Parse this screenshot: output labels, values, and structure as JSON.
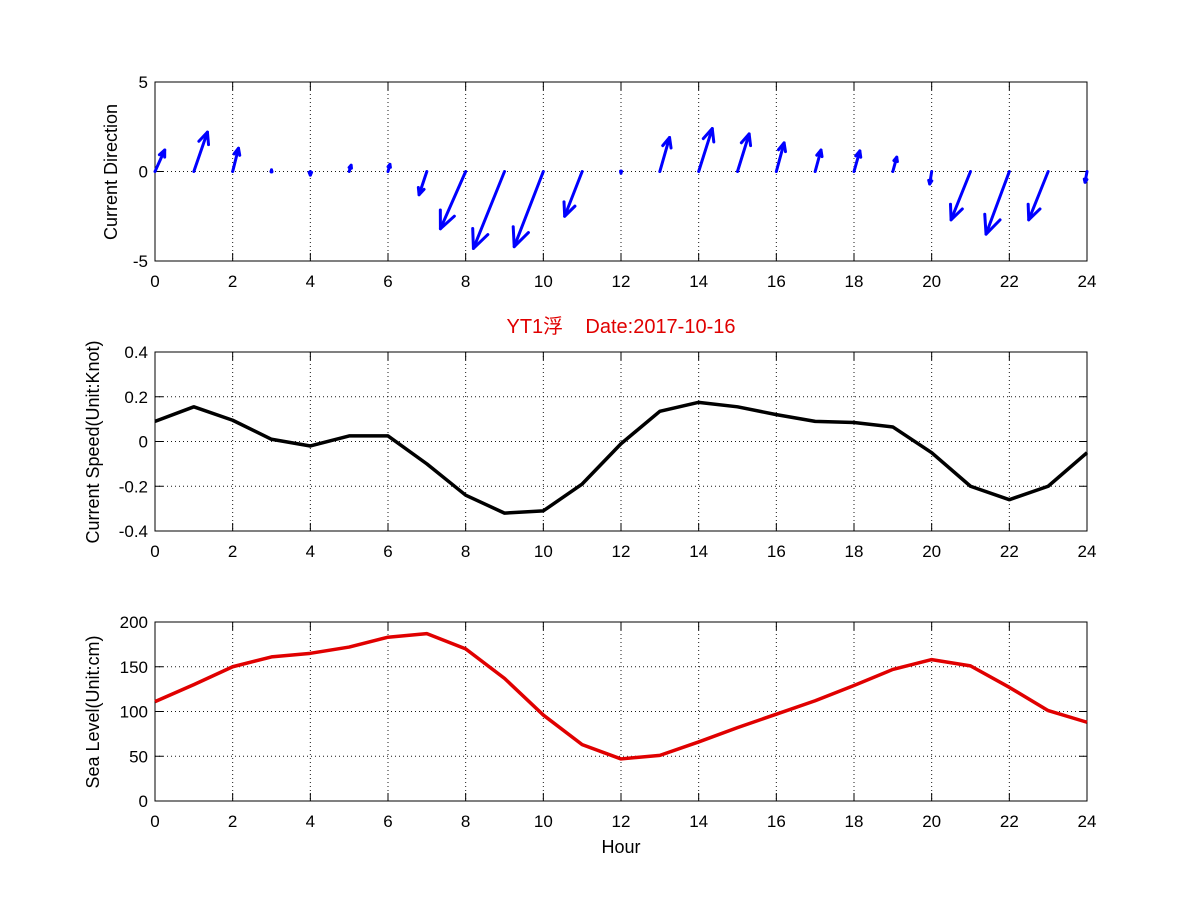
{
  "figure": {
    "title": "YT1浮    Date:2017-10-16",
    "title_color": "#e00000",
    "xlabel": "Hour"
  },
  "chart_data": [
    {
      "type": "quiver",
      "xlabel": "",
      "ylabel": "Current Direction",
      "xlim": [
        0,
        24
      ],
      "ylim": [
        -5,
        5
      ],
      "grid": true,
      "color": "#0000ff",
      "x_ticks": [
        0,
        2,
        4,
        6,
        8,
        10,
        12,
        14,
        16,
        18,
        20,
        22,
        24
      ],
      "y_ticks": [
        -5,
        0,
        5
      ],
      "vectors": [
        {
          "x": 0,
          "u": 0.25,
          "v": 1.2
        },
        {
          "x": 1,
          "u": 0.35,
          "v": 2.2
        },
        {
          "x": 2,
          "u": 0.15,
          "v": 1.3
        },
        {
          "x": 3,
          "u": 0.0,
          "v": 0.1
        },
        {
          "x": 4,
          "u": 0.0,
          "v": -0.2
        },
        {
          "x": 5,
          "u": 0.05,
          "v": 0.35
        },
        {
          "x": 6,
          "u": 0.05,
          "v": 0.4
        },
        {
          "x": 7,
          "u": -0.2,
          "v": -1.3
        },
        {
          "x": 8,
          "u": -0.65,
          "v": -3.2
        },
        {
          "x": 9,
          "u": -0.8,
          "v": -4.3
        },
        {
          "x": 10,
          "u": -0.75,
          "v": -4.2
        },
        {
          "x": 11,
          "u": -0.45,
          "v": -2.5
        },
        {
          "x": 12,
          "u": 0.0,
          "v": -0.1
        },
        {
          "x": 13,
          "u": 0.25,
          "v": 1.9
        },
        {
          "x": 14,
          "u": 0.35,
          "v": 2.4
        },
        {
          "x": 15,
          "u": 0.3,
          "v": 2.1
        },
        {
          "x": 16,
          "u": 0.2,
          "v": 1.6
        },
        {
          "x": 17,
          "u": 0.15,
          "v": 1.2
        },
        {
          "x": 18,
          "u": 0.15,
          "v": 1.15
        },
        {
          "x": 19,
          "u": 0.1,
          "v": 0.8
        },
        {
          "x": 20,
          "u": -0.05,
          "v": -0.7
        },
        {
          "x": 21,
          "u": -0.5,
          "v": -2.7
        },
        {
          "x": 22,
          "u": -0.6,
          "v": -3.5
        },
        {
          "x": 23,
          "u": -0.5,
          "v": -2.7
        },
        {
          "x": 24,
          "u": -0.05,
          "v": -0.6
        }
      ]
    },
    {
      "type": "line",
      "xlabel": "",
      "ylabel": "Current Speed(Unit:Knot)",
      "xlim": [
        0,
        24
      ],
      "ylim": [
        -0.4,
        0.4
      ],
      "grid": true,
      "color": "#000000",
      "x_ticks": [
        0,
        2,
        4,
        6,
        8,
        10,
        12,
        14,
        16,
        18,
        20,
        22,
        24
      ],
      "y_ticks": [
        -0.4,
        -0.2,
        0,
        0.2,
        0.4
      ],
      "y_tick_labels": [
        "-0.4",
        "-0.2",
        "0",
        "0.2",
        "0.4"
      ],
      "x": [
        0,
        1,
        2,
        3,
        4,
        5,
        6,
        7,
        8,
        9,
        10,
        11,
        12,
        13,
        14,
        15,
        16,
        17,
        18,
        19,
        20,
        21,
        22,
        23,
        24
      ],
      "y": [
        0.09,
        0.155,
        0.095,
        0.01,
        -0.02,
        0.025,
        0.025,
        -0.1,
        -0.24,
        -0.32,
        -0.31,
        -0.19,
        -0.01,
        0.135,
        0.175,
        0.155,
        0.12,
        0.09,
        0.085,
        0.065,
        -0.05,
        -0.2,
        -0.26,
        -0.2,
        -0.05
      ]
    },
    {
      "type": "line",
      "xlabel": "Hour",
      "ylabel": "Sea Level(Unit:cm)",
      "xlim": [
        0,
        24
      ],
      "ylim": [
        0,
        200
      ],
      "grid": true,
      "color": "#e00000",
      "x_ticks": [
        0,
        2,
        4,
        6,
        8,
        10,
        12,
        14,
        16,
        18,
        20,
        22,
        24
      ],
      "y_ticks": [
        0,
        50,
        100,
        150,
        200
      ],
      "x": [
        0,
        1,
        2,
        3,
        4,
        5,
        6,
        7,
        8,
        9,
        10,
        11,
        12,
        13,
        14,
        15,
        16,
        17,
        18,
        19,
        20,
        21,
        22,
        23,
        24
      ],
      "y": [
        111,
        130,
        150,
        161,
        165,
        172,
        183,
        187,
        170,
        137,
        96,
        63,
        47,
        51,
        66,
        82,
        97,
        112,
        129,
        147,
        158,
        151,
        127,
        101,
        88
      ]
    }
  ]
}
